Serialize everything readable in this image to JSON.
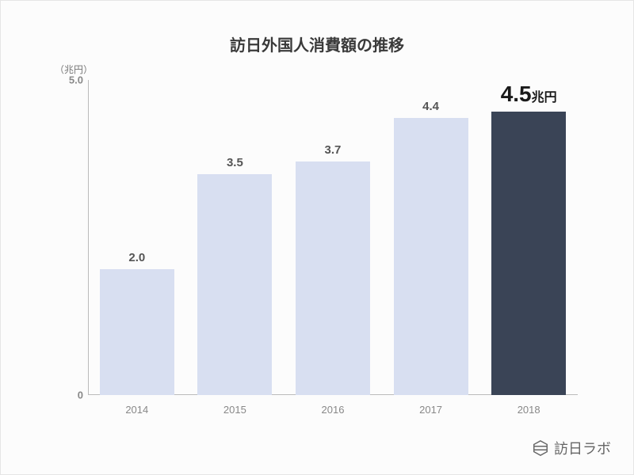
{
  "chart": {
    "type": "bar",
    "title": "訪日外国人消費額の推移",
    "unit_label": "（兆円）",
    "y_axis": {
      "min": 0,
      "max": 5.0,
      "ticks": [
        {
          "value": 0,
          "label": "0"
        },
        {
          "value": 5.0,
          "label": "5.0"
        }
      ],
      "label_color": "#888888",
      "label_fontsize": 13
    },
    "x_axis": {
      "label_color": "#888888",
      "label_fontsize": 13
    },
    "bars": [
      {
        "category": "2014",
        "value": 2.0,
        "label": "2.0",
        "color": "#d8dff1",
        "highlight": false
      },
      {
        "category": "2015",
        "value": 3.5,
        "label": "3.5",
        "color": "#d8dff1",
        "highlight": false
      },
      {
        "category": "2016",
        "value": 3.7,
        "label": "3.7",
        "color": "#d8dff1",
        "highlight": false
      },
      {
        "category": "2017",
        "value": 4.4,
        "label": "4.4",
        "color": "#d8dff1",
        "highlight": false
      },
      {
        "category": "2018",
        "value": 4.5,
        "label": "4.5",
        "label_suffix": "兆円",
        "color": "#3a4456",
        "highlight": true
      }
    ],
    "bar_width_ratio": 0.76,
    "background_color": "#fcfcfc",
    "axis_line_color": "#bbbbbb",
    "title_color": "#3a3a3a",
    "title_fontsize": 20,
    "bar_label_color": "#555555",
    "bar_label_fontsize": 15,
    "highlight_label_color": "#1a1a1a",
    "highlight_label_fontsize": 28
  },
  "logo": {
    "text": "訪日ラボ",
    "icon": "hexagon-icon",
    "color": "#666666"
  }
}
